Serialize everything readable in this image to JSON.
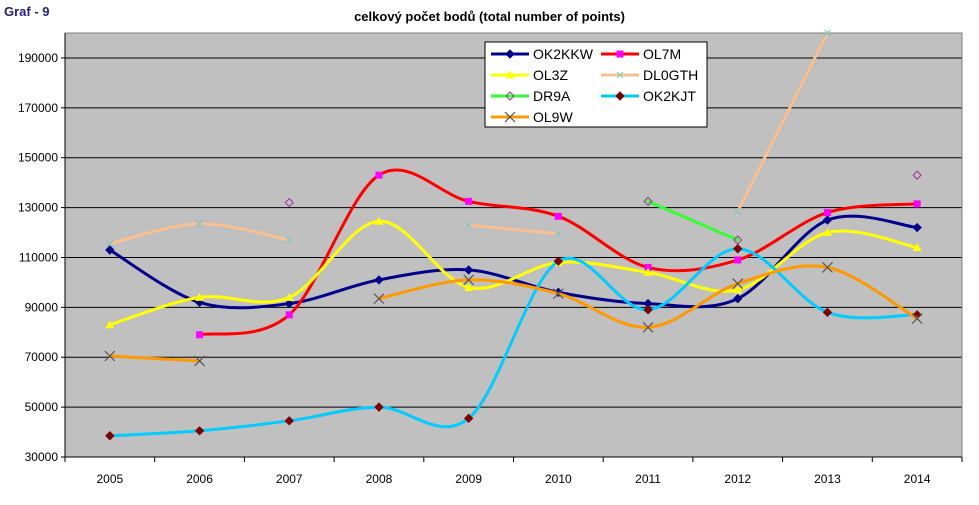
{
  "figure_label": "Graf - 9",
  "chart_data": {
    "type": "line",
    "title": "celkový počet bodů (total number of points)",
    "xlabel": "",
    "ylabel": "",
    "categories": [
      "2005",
      "2006",
      "2007",
      "2008",
      "2009",
      "2010",
      "2011",
      "2012",
      "2013",
      "2014"
    ],
    "ylim": [
      30000,
      200000
    ],
    "yticks": [
      "30000",
      "50000",
      "70000",
      "90000",
      "110000",
      "130000",
      "150000",
      "170000",
      "190000"
    ],
    "grid": "horizontal",
    "legend_position": "top-center",
    "background": "#c0c0c0",
    "series": [
      {
        "name": "OK2KKW",
        "color": "#00008b",
        "marker": "diamond",
        "values": [
          113000,
          92000,
          91500,
          101000,
          105000,
          96000,
          91500,
          93500,
          125000,
          122000
        ]
      },
      {
        "name": "OL7M",
        "color": "#ff0000",
        "marker": "square",
        "marker_color": "#ff00ff",
        "values": [
          null,
          79000,
          87000,
          143000,
          132500,
          126500,
          106000,
          109000,
          128000,
          131500
        ]
      },
      {
        "name": "OL3Z",
        "color": "#ffff00",
        "marker": "triangle",
        "values": [
          83000,
          94000,
          94000,
          124500,
          98000,
          108000,
          104000,
          97000,
          120000,
          114000
        ]
      },
      {
        "name": "DL0GTH",
        "color": "#fac090",
        "marker": "x-small",
        "marker_color": "#66cccc",
        "segments": [
          [
            0,
            2
          ],
          [
            4,
            5
          ],
          [
            7,
            8
          ]
        ],
        "values": [
          115500,
          123500,
          117000,
          null,
          123000,
          119500,
          null,
          128500,
          200000,
          null
        ]
      },
      {
        "name": "DR9A",
        "color": "#33ff33",
        "marker": "diamond-open",
        "marker_color": "#993399",
        "segments": [
          [
            6,
            7
          ]
        ],
        "values": [
          null,
          null,
          132000,
          null,
          null,
          null,
          132500,
          117000,
          null,
          143000
        ]
      },
      {
        "name": "OK2KJT",
        "color": "#00ccff",
        "marker": "diamond",
        "marker_color": "#800000",
        "values": [
          38500,
          40500,
          44500,
          50000,
          45500,
          108500,
          89000,
          113500,
          88000,
          87000
        ]
      },
      {
        "name": "OL9W",
        "color": "#ff9900",
        "marker": "x",
        "marker_color": "#555555",
        "segments": [
          [
            0,
            1
          ],
          [
            3,
            9
          ]
        ],
        "values": [
          70500,
          68500,
          null,
          93500,
          101000,
          95500,
          82000,
          99500,
          106000,
          85500
        ]
      }
    ]
  }
}
